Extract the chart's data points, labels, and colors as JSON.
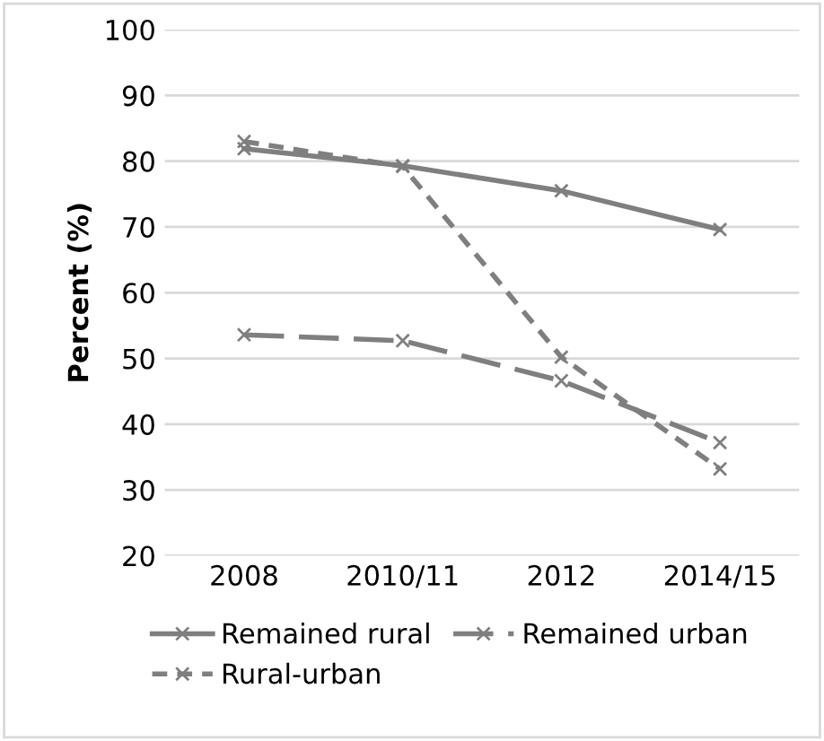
{
  "chart_data": {
    "type": "line",
    "ylabel": "Percent (%)",
    "categories": [
      "2008",
      "2010/11",
      "2012",
      "2014/15"
    ],
    "series": [
      {
        "name": "Remained rural",
        "color": "#7f7f7f",
        "values": [
          81.9,
          79.3,
          75.5,
          69.6
        ],
        "line_style": "solid"
      },
      {
        "name": "Rural-urban",
        "color": "#7f7f7f",
        "values": [
          83.0,
          79.2,
          50.2,
          33.2
        ],
        "line_style": "dotted"
      },
      {
        "name": "Remained urban",
        "color": "#7f7f7f",
        "values": [
          53.6,
          52.7,
          46.6,
          37.2
        ],
        "line_style": "dashed"
      }
    ],
    "ylim": [
      20,
      100
    ],
    "yticks": [
      20,
      30,
      40,
      50,
      60,
      70,
      80,
      90,
      100
    ],
    "grid": "y",
    "legend": "bottom",
    "marker": "cross"
  }
}
